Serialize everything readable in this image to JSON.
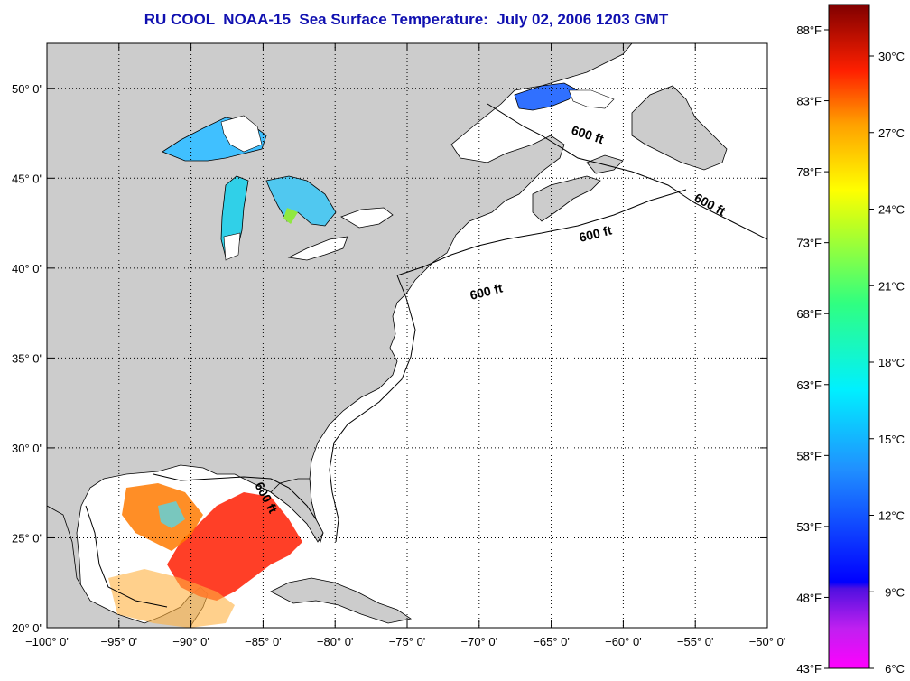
{
  "title": "RU COOL  NOAA-15  Sea Surface Temperature:  July 02, 2006 1203 GMT",
  "map": {
    "lon_range": [
      -100,
      -50
    ],
    "lat_range": [
      20,
      52.5
    ],
    "lon_ticks": [
      "−100° 0'",
      "−95° 0'",
      "−90° 0'",
      "−85° 0'",
      "−80° 0'",
      "−75° 0'",
      "−70° 0'",
      "−65° 0'",
      "−60° 0'",
      "−55° 0'",
      "−50° 0'"
    ],
    "lat_ticks": [
      "20° 0'",
      "25° 0'",
      "30° 0'",
      "35° 0'",
      "40° 0'",
      "45° 0'",
      "50° 0'"
    ],
    "grid": "dotted",
    "land_color": "#cccccc",
    "ocean_color": "#ffffff",
    "contour_label": "600 ft"
  },
  "colorbar": {
    "fahrenheit_labels": [
      "88°F",
      "83°F",
      "78°F",
      "73°F",
      "68°F",
      "63°F",
      "58°F",
      "53°F",
      "48°F",
      "43°F"
    ],
    "celsius_labels": [
      "30°C",
      "27°C",
      "24°C",
      "21°C",
      "18°C",
      "15°C",
      "12°C",
      "9°C",
      "6°C"
    ],
    "colors": [
      "#ff00ff",
      "#8030e0",
      "#0000ff",
      "#2080ff",
      "#00e0ff",
      "#00ff90",
      "#a0ff20",
      "#ffff00",
      "#ffa000",
      "#ff3000",
      "#d00000",
      "#800000"
    ]
  }
}
